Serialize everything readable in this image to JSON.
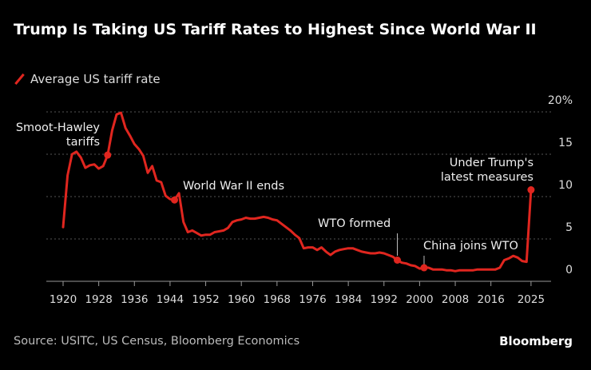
{
  "title": "Trump Is Taking US Tariff Rates to Highest Since World War II",
  "source": "Source: USITC, US Census, Bloomberg Economics",
  "logo": "Bloomberg",
  "colors": {
    "series": "#e0261f",
    "background": "#000000",
    "grid": "#555555",
    "text": "#dddddd"
  },
  "chart_data": {
    "type": "line",
    "title": "Trump Is Taking US Tariff Rates to Highest Since World War II",
    "xlabel": "",
    "ylabel": "",
    "xlim": [
      1920,
      2025
    ],
    "ylim": [
      0,
      20
    ],
    "grid": true,
    "legend_placement": "top-left",
    "x_ticks": [
      "1920",
      "1928",
      "1936",
      "1944",
      "1952",
      "1960",
      "1968",
      "1976",
      "1984",
      "1992",
      "2000",
      "2008",
      "2016",
      "2025"
    ],
    "y_ticks": [
      "0",
      "5",
      "10",
      "15",
      "20%"
    ],
    "series": [
      {
        "name": "Average US tariff rate",
        "points": [
          [
            1920,
            6.4
          ],
          [
            1921,
            12.5
          ],
          [
            1922,
            15.0
          ],
          [
            1923,
            15.3
          ],
          [
            1924,
            14.6
          ],
          [
            1925,
            13.4
          ],
          [
            1926,
            13.7
          ],
          [
            1927,
            13.8
          ],
          [
            1928,
            13.3
          ],
          [
            1929,
            13.6
          ],
          [
            1930,
            14.9
          ],
          [
            1931,
            17.8
          ],
          [
            1932,
            19.7
          ],
          [
            1933,
            19.9
          ],
          [
            1934,
            18.1
          ],
          [
            1935,
            17.2
          ],
          [
            1936,
            16.2
          ],
          [
            1937,
            15.6
          ],
          [
            1938,
            14.8
          ],
          [
            1939,
            12.8
          ],
          [
            1940,
            13.6
          ],
          [
            1941,
            11.9
          ],
          [
            1942,
            11.7
          ],
          [
            1943,
            10.1
          ],
          [
            1944,
            9.7
          ],
          [
            1945,
            9.6
          ],
          [
            1946,
            10.4
          ],
          [
            1947,
            7.0
          ],
          [
            1948,
            5.8
          ],
          [
            1949,
            6.0
          ],
          [
            1950,
            5.7
          ],
          [
            1951,
            5.4
          ],
          [
            1952,
            5.5
          ],
          [
            1953,
            5.5
          ],
          [
            1954,
            5.8
          ],
          [
            1955,
            5.9
          ],
          [
            1956,
            6.0
          ],
          [
            1957,
            6.3
          ],
          [
            1958,
            7.0
          ],
          [
            1959,
            7.2
          ],
          [
            1960,
            7.3
          ],
          [
            1961,
            7.5
          ],
          [
            1962,
            7.4
          ],
          [
            1963,
            7.4
          ],
          [
            1964,
            7.5
          ],
          [
            1965,
            7.6
          ],
          [
            1966,
            7.5
          ],
          [
            1967,
            7.3
          ],
          [
            1968,
            7.2
          ],
          [
            1969,
            6.8
          ],
          [
            1970,
            6.4
          ],
          [
            1971,
            6.0
          ],
          [
            1972,
            5.5
          ],
          [
            1973,
            5.1
          ],
          [
            1974,
            3.9
          ],
          [
            1975,
            4.0
          ],
          [
            1976,
            4.0
          ],
          [
            1977,
            3.7
          ],
          [
            1978,
            4.0
          ],
          [
            1979,
            3.5
          ],
          [
            1980,
            3.1
          ],
          [
            1981,
            3.5
          ],
          [
            1982,
            3.7
          ],
          [
            1983,
            3.8
          ],
          [
            1984,
            3.9
          ],
          [
            1985,
            3.9
          ],
          [
            1986,
            3.7
          ],
          [
            1987,
            3.5
          ],
          [
            1988,
            3.4
          ],
          [
            1989,
            3.3
          ],
          [
            1990,
            3.3
          ],
          [
            1991,
            3.4
          ],
          [
            1992,
            3.3
          ],
          [
            1993,
            3.1
          ],
          [
            1994,
            2.9
          ],
          [
            1995,
            2.5
          ],
          [
            1996,
            2.2
          ],
          [
            1997,
            2.1
          ],
          [
            1998,
            1.9
          ],
          [
            1999,
            1.8
          ],
          [
            2000,
            1.5
          ],
          [
            2001,
            1.6
          ],
          [
            2002,
            1.6
          ],
          [
            2003,
            1.4
          ],
          [
            2004,
            1.4
          ],
          [
            2005,
            1.4
          ],
          [
            2006,
            1.3
          ],
          [
            2007,
            1.3
          ],
          [
            2008,
            1.2
          ],
          [
            2009,
            1.3
          ],
          [
            2010,
            1.3
          ],
          [
            2011,
            1.3
          ],
          [
            2012,
            1.3
          ],
          [
            2013,
            1.4
          ],
          [
            2014,
            1.4
          ],
          [
            2015,
            1.4
          ],
          [
            2016,
            1.4
          ],
          [
            2017,
            1.4
          ],
          [
            2018,
            1.6
          ],
          [
            2019,
            2.5
          ],
          [
            2020,
            2.7
          ],
          [
            2021,
            3.0
          ],
          [
            2022,
            2.8
          ],
          [
            2023,
            2.4
          ],
          [
            2024,
            2.3
          ],
          [
            2025,
            10.8
          ]
        ]
      }
    ],
    "annotations": [
      {
        "lines": [
          "Smoot-Hawley",
          "tariffs"
        ],
        "year": 1930,
        "value": 14.9
      },
      {
        "lines": [
          "World War II ends"
        ],
        "year": 1945,
        "value": 9.6
      },
      {
        "lines": [
          "WTO formed"
        ],
        "year": 1995,
        "value": 2.5
      },
      {
        "lines": [
          "China joins WTO"
        ],
        "year": 2001,
        "value": 1.6
      },
      {
        "lines": [
          "Under Trump's",
          "latest measures"
        ],
        "year": 2025,
        "value": 10.8
      }
    ]
  }
}
